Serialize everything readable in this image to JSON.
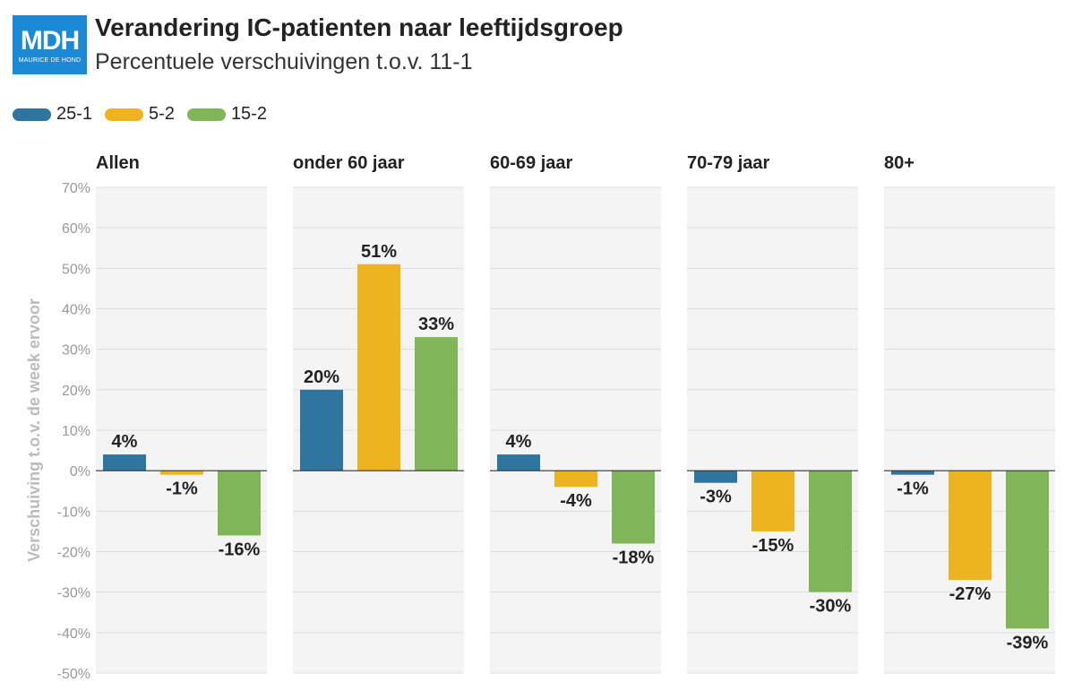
{
  "logo": {
    "text": "MDH",
    "subtext": "MAURICE DE HOND"
  },
  "chart_data": {
    "type": "bar",
    "title": "Verandering IC-patienten naar leeftijdsgroep",
    "subtitle": "Percentuele verschuivingen t.o.v. 11-1",
    "ylabel": "Verschuiving t.o.v. de week ervoor",
    "ylim": [
      -50,
      70
    ],
    "yticks": [
      70,
      60,
      50,
      40,
      30,
      20,
      10,
      0,
      -10,
      -20,
      -30,
      -40,
      -50
    ],
    "ytick_labels": [
      "70%",
      "60%",
      "50%",
      "40%",
      "30%",
      "20%",
      "10%",
      "0%",
      "-10%",
      "-20%",
      "-30%",
      "-40%",
      "-50%"
    ],
    "legend": [
      {
        "label": "25-1",
        "color": "#2e75a0"
      },
      {
        "label": "5-2",
        "color": "#eeb420"
      },
      {
        "label": "15-2",
        "color": "#80b558"
      }
    ],
    "panels": [
      {
        "title": "Allen",
        "values": [
          4,
          -1,
          -16
        ],
        "labels": [
          "4%",
          "-1%",
          "-16%"
        ]
      },
      {
        "title": "onder 60 jaar",
        "values": [
          20,
          51,
          33
        ],
        "labels": [
          "20%",
          "51%",
          "33%"
        ]
      },
      {
        "title": "60-69 jaar",
        "values": [
          4,
          -4,
          -18
        ],
        "labels": [
          "4%",
          "-4%",
          "-18%"
        ]
      },
      {
        "title": "70-79 jaar",
        "values": [
          -3,
          -15,
          -30
        ],
        "labels": [
          "-3%",
          "-15%",
          "-30%"
        ]
      },
      {
        "title": "80+",
        "values": [
          -1,
          -27,
          -39
        ],
        "labels": [
          "-1%",
          "-27%",
          "-39%"
        ]
      }
    ]
  }
}
